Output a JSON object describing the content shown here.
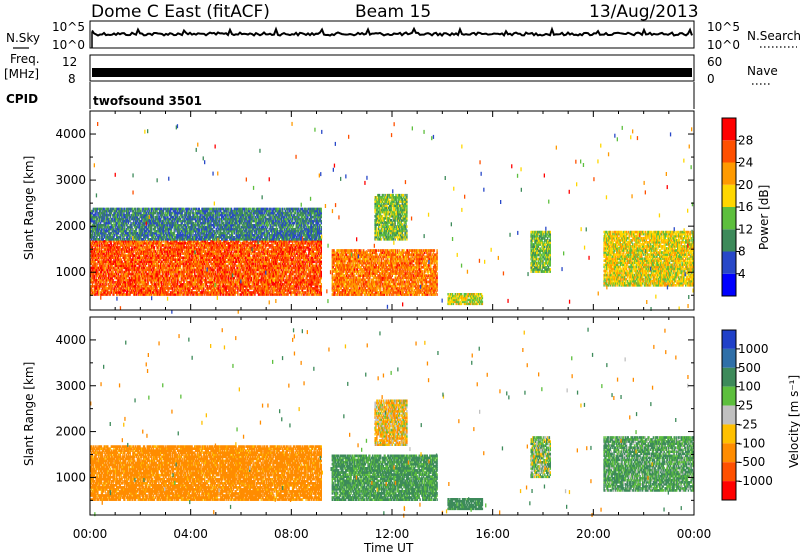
{
  "header": {
    "title": "Dome C East (fitACF)",
    "beam": "Beam 15",
    "date": "13/Aug/2013"
  },
  "ancillary": {
    "nsky_label": "N.Sky",
    "nsky_ticks": [
      "10^5",
      "10^0"
    ],
    "nsearch_label": "N.Search",
    "nsearch_ticks": [
      "10^5",
      "10^0"
    ],
    "freq_label_1": "Freq.",
    "freq_label_2": "[MHz]",
    "freq_ticks": [
      "12",
      "8"
    ],
    "nave_label": "Nave",
    "nave_ticks": [
      "60",
      "0"
    ],
    "cpid_label": "CPID",
    "cpid_text": "twofsound 3501"
  },
  "x_axis": {
    "label": "Time UT",
    "ticks": [
      "00:00",
      "04:00",
      "08:00",
      "12:00",
      "16:00",
      "20:00",
      "00:00"
    ]
  },
  "power_panel": {
    "ylabel": "Slant Range [km]",
    "yticks": [
      "1000",
      "2000",
      "3000",
      "4000"
    ],
    "colorbar_label": "Power [dB]",
    "colorbar_ticks": [
      "4",
      "8",
      "12",
      "16",
      "20",
      "24",
      "28"
    ],
    "colors": [
      "#0000ff",
      "#2848c8",
      "#3d8a5a",
      "#5dbf3d",
      "#ffd700",
      "#ff9a00",
      "#ff5000",
      "#ff0000"
    ]
  },
  "velocity_panel": {
    "ylabel": "Slant Range [km]",
    "yticks": [
      "1000",
      "2000",
      "3000",
      "4000"
    ],
    "colorbar_label": "Velocity [m s⁻¹]",
    "colorbar_ticks": [
      "1000",
      "500",
      "100",
      "25",
      "-25",
      "-100",
      "-500",
      "-1000"
    ],
    "colors": [
      "#2040c8",
      "#2f6fa8",
      "#3d8a5a",
      "#5dbf3d",
      "#c0c0c0",
      "#ffc000",
      "#ff8c00",
      "#ff5000",
      "#ff0000"
    ]
  },
  "chart_data": [
    {
      "type": "heatmap",
      "title": "Power",
      "xlabel": "Time UT",
      "ylabel": "Slant Range [km]",
      "x_range_hours": [
        0,
        24
      ],
      "ylim": [
        180,
        4500
      ],
      "colorbar": {
        "label": "Power [dB]",
        "ticks": [
          4,
          8,
          12,
          16,
          20,
          24,
          28
        ],
        "range": [
          0,
          32
        ]
      },
      "scatter_regions": [
        {
          "t_start": 0.0,
          "t_end": 9.2,
          "r_min": 500,
          "r_max": 1700,
          "value": 26
        },
        {
          "t_start": 0.0,
          "t_end": 9.2,
          "r_min": 1700,
          "r_max": 2400,
          "value": 9
        },
        {
          "t_start": 9.6,
          "t_end": 13.8,
          "r_min": 500,
          "r_max": 1500,
          "value": 24
        },
        {
          "t_start": 11.3,
          "t_end": 12.6,
          "r_min": 1700,
          "r_max": 2700,
          "value": 14
        },
        {
          "t_start": 14.2,
          "t_end": 15.6,
          "r_min": 300,
          "r_max": 550,
          "value": 17
        },
        {
          "t_start": 17.5,
          "t_end": 18.3,
          "r_min": 1000,
          "r_max": 1900,
          "value": 14
        },
        {
          "t_start": 20.4,
          "t_end": 24.0,
          "r_min": 700,
          "r_max": 1900,
          "value": 18
        }
      ]
    },
    {
      "type": "heatmap",
      "title": "Velocity",
      "xlabel": "Time UT",
      "ylabel": "Slant Range [km]",
      "x_range_hours": [
        0,
        24
      ],
      "ylim": [
        180,
        4500
      ],
      "colorbar": {
        "label": "Velocity [m s⁻¹]",
        "ticks": [
          1000,
          500,
          100,
          25,
          -25,
          -100,
          -500,
          -1000
        ]
      },
      "scatter_regions": [
        {
          "t_start": 0.0,
          "t_end": 9.2,
          "r_min": 500,
          "r_max": 1700,
          "value": -200
        },
        {
          "t_start": 9.6,
          "t_end": 13.8,
          "r_min": 500,
          "r_max": 1500,
          "value": 150
        },
        {
          "t_start": 11.3,
          "t_end": 12.6,
          "r_min": 1700,
          "r_max": 2700,
          "value": -60
        },
        {
          "t_start": 14.2,
          "t_end": 15.6,
          "r_min": 300,
          "r_max": 550,
          "value": 200
        },
        {
          "t_start": 17.5,
          "t_end": 18.3,
          "r_min": 1000,
          "r_max": 1900,
          "value": 50
        },
        {
          "t_start": 20.4,
          "t_end": 24.0,
          "r_min": 700,
          "r_max": 1900,
          "value": 120
        }
      ]
    }
  ]
}
